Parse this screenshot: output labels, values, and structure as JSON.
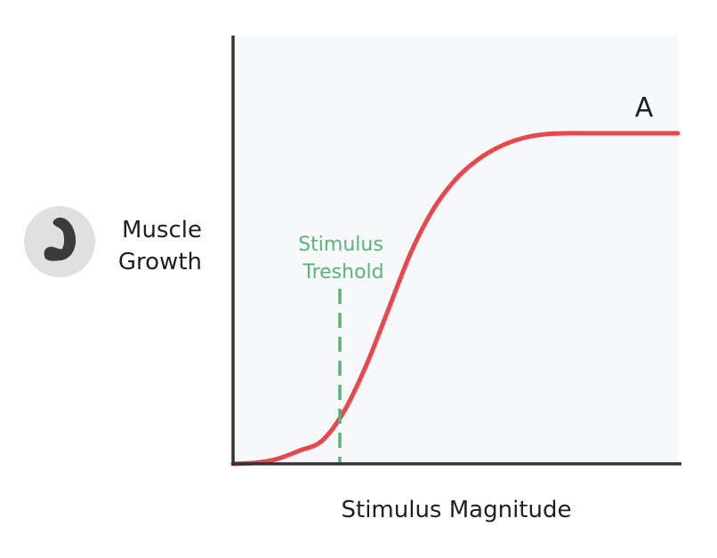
{
  "chart_data": {
    "type": "line",
    "title": "",
    "xlabel": "Stimulus Magnitude",
    "ylabel": [
      "Muscle",
      "Growth"
    ],
    "ylabel_icon": "flexed-arm-icon",
    "grid": false,
    "xlim": [
      0,
      1
    ],
    "ylim": [
      0,
      1
    ],
    "series": [
      {
        "color": "#e8474c",
        "x": [
          0.0,
          0.05,
          0.1,
          0.15,
          0.2,
          0.25,
          0.3,
          0.35,
          0.4,
          0.45,
          0.5,
          0.55,
          0.6,
          0.65,
          0.7,
          0.75,
          0.8,
          0.85,
          0.9,
          1.0
        ],
        "y": [
          0.0,
          0.003,
          0.015,
          0.04,
          0.07,
          0.16,
          0.3,
          0.47,
          0.64,
          0.77,
          0.86,
          0.92,
          0.96,
          0.985,
          0.997,
          1.0,
          1.0,
          1.0,
          1.0,
          1.0
        ]
      }
    ],
    "end_label": "A",
    "threshold": {
      "x": 0.24,
      "label": [
        "Stimulus",
        "Treshold"
      ],
      "color": "#5bb37a"
    },
    "plot_background": "#f7f8fa",
    "axis_color": "#333333"
  }
}
